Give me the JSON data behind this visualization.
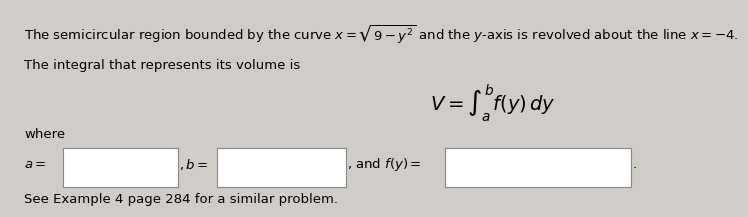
{
  "background_color": "#d0cdc8",
  "panel_color": "#edeae4",
  "line1": "The semicircular region bounded by the curve $x = \\sqrt{9 - y^2}$ and the $y$-axis is revolved about the line $x = -4$.",
  "line2": "The integral that represents its volume is",
  "integral_expr": "$V = \\int_{a}^{b} f(y)\\, dy$",
  "where_label": "where",
  "a_label": "$a =$",
  "b_label": "$, b =$",
  "fy_label": ", and $f(y) =$",
  "see_example": "See Example 4 page 284 for a similar problem.",
  "box_color": "#ffffff",
  "text_color": "#000000",
  "font_size": 9.5
}
